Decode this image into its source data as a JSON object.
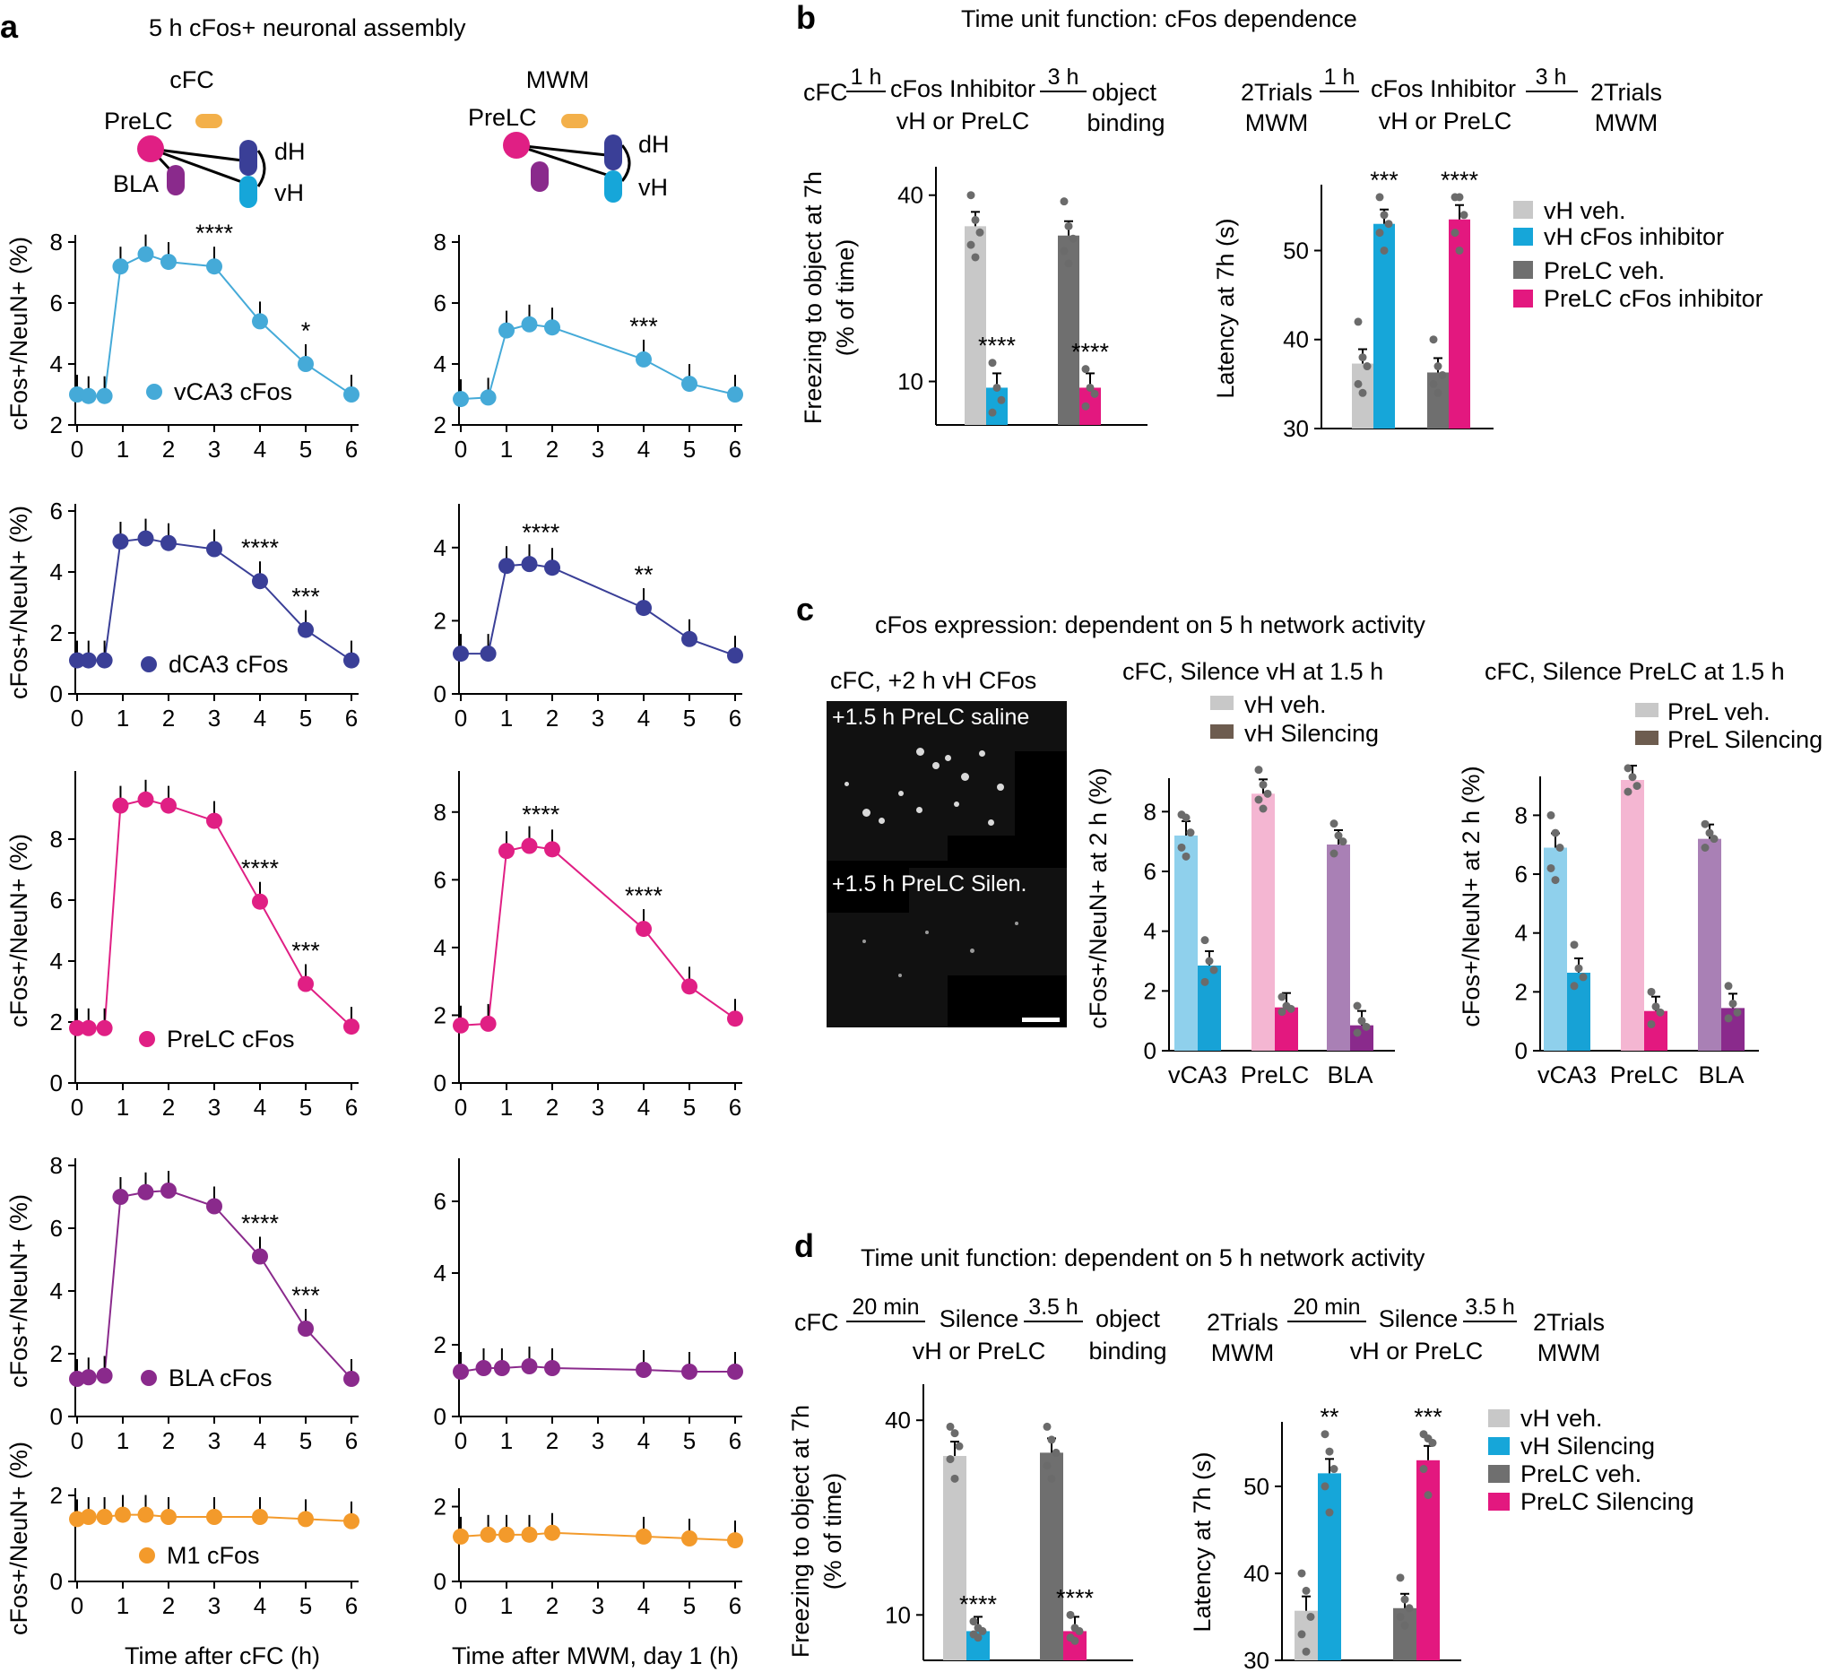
{
  "panels": {
    "a": {
      "letter": "a",
      "title": "5 h cFos+ neuronal assembly",
      "col_titles": [
        "cFC",
        "MWM"
      ],
      "schematic_labels": {
        "prelc": "PreLC",
        "bla": "BLA",
        "dh": "dH",
        "vh": "vH"
      },
      "x_ticks": [
        "0",
        "1",
        "2",
        "3",
        "4",
        "5",
        "6"
      ],
      "ylabel": "cFos+/NeuN+ (%)",
      "xlabel_cfc": "Time after cFC (h)",
      "xlabel_mwm": "Time after MWM, day 1 (h)"
    },
    "b": {
      "letter": "b",
      "title": "Time unit function: cFos dependence",
      "timeline_left": {
        "start": "cFC",
        "t1": "1 h",
        "mid_top": "cFos Inhibitor",
        "mid_bottom": "vH or PreLC",
        "t2": "3 h",
        "end_top": "object",
        "end_bottom": "binding"
      },
      "timeline_right": {
        "start_top": "2Trials",
        "start_bottom": "MWM",
        "t1": "1 h",
        "mid_top": "cFos Inhibitor",
        "mid_bottom": "vH or PreLC",
        "t2": "3 h",
        "end_top": "2Trials",
        "end_bottom": "MWM"
      },
      "legend": [
        "vH veh.",
        "vH cFos inhibitor",
        "PreLC veh.",
        "PreLC cFos inhibitor"
      ]
    },
    "c": {
      "letter": "c",
      "title": "cFos expression: dependent on 5 h network activity",
      "micrograph_title": "cFC, +2 h vH CFos",
      "micrograph_top_label": "+1.5 h PreLC saline",
      "micrograph_bottom_label": "+1.5 h PreLC Silen.",
      "chart_left_title": "cFC, Silence vH at 1.5 h",
      "chart_right_title": "cFC, Silence PreLC at 1.5 h",
      "legend_left": [
        "vH veh.",
        "vH Silencing"
      ],
      "legend_right": [
        "PreL veh.",
        "PreL Silencing"
      ]
    },
    "d": {
      "letter": "d",
      "title": "Time unit function: dependent on 5 h network activity",
      "timeline_left": {
        "start": "cFC",
        "t1": "20 min",
        "mid_top": "Silence",
        "mid_bottom": "vH or PreLC",
        "t2": "3.5 h",
        "end_top": "object",
        "end_bottom": "binding"
      },
      "timeline_right": {
        "start_top": "2Trials",
        "start_bottom": "MWM",
        "t1": "20 min",
        "mid_top": "Silence",
        "mid_bottom": "vH or PreLC",
        "t2": "3.5 h",
        "end_top": "2Trials",
        "end_bottom": "MWM"
      },
      "legend": [
        "vH veh.",
        "vH Silencing",
        "PreLC veh.",
        "PreLC Silencing"
      ]
    }
  },
  "colors": {
    "vCA3": "#45aad8",
    "dCA3": "#3a3f97",
    "PreLC": "#e01f84",
    "BLA": "#8a2a8c",
    "M1": "#f39a2b",
    "veh_light": "#c8c8c8",
    "veh_dark": "#6f6f6f",
    "vH_inhib": "#16a6d9",
    "prelc_inhib": "#e3187f",
    "c_vCA3_veh": "#8fd0ec",
    "c_vCA3_sil": "#17a2d6",
    "c_PreLC_veh": "#f4b6d2",
    "c_PreLC_sil": "#e3187f",
    "c_BLA_veh": "#a980b5",
    "c_BLA_sil": "#8a2a8c",
    "c_legend_sil": "#6d5c4f"
  },
  "chart_data": [
    {
      "id": "a-vca3-cfc",
      "type": "line",
      "series": [
        {
          "name": "vCA3 cFos",
          "x": [
            0,
            0.25,
            0.6,
            0.95,
            1.5,
            2,
            3,
            4,
            5,
            6
          ],
          "y": [
            3.0,
            2.95,
            2.95,
            7.2,
            7.6,
            7.35,
            7.2,
            5.4,
            4.0,
            3.0
          ]
        }
      ],
      "ylim": [
        2,
        8
      ],
      "yticks": [
        2,
        4,
        6,
        8
      ],
      "xlim": [
        0,
        6
      ],
      "annotations": [
        {
          "x": 3,
          "text": "****"
        },
        {
          "x": 5,
          "text": "*"
        }
      ]
    },
    {
      "id": "a-vca3-mwm",
      "type": "line",
      "series": [
        {
          "x": [
            0,
            0.6,
            1,
            1.5,
            2,
            4,
            5,
            6
          ],
          "y": [
            2.85,
            2.9,
            5.1,
            5.3,
            5.2,
            4.15,
            3.35,
            3.0
          ]
        }
      ],
      "ylim": [
        2,
        8
      ],
      "yticks": [
        2,
        4,
        6,
        8
      ],
      "xlim": [
        0,
        6
      ],
      "annotations": [
        {
          "x": 4,
          "text": "***"
        }
      ]
    },
    {
      "id": "a-dca3-cfc",
      "type": "line",
      "series": [
        {
          "name": "dCA3 cFos",
          "x": [
            0,
            0.25,
            0.6,
            0.95,
            1.5,
            2,
            3,
            4,
            5,
            6
          ],
          "y": [
            1.1,
            1.1,
            1.1,
            5.0,
            5.1,
            4.95,
            4.75,
            3.7,
            2.1,
            1.1
          ]
        }
      ],
      "ylim": [
        0,
        6
      ],
      "yticks": [
        0,
        2,
        4,
        6
      ],
      "xlim": [
        0,
        6
      ],
      "annotations": [
        {
          "x": 4,
          "text": "****"
        },
        {
          "x": 5,
          "text": "***"
        }
      ]
    },
    {
      "id": "a-dca3-mwm",
      "type": "line",
      "series": [
        {
          "x": [
            0,
            0.6,
            1,
            1.5,
            2,
            4,
            5,
            6
          ],
          "y": [
            1.1,
            1.1,
            3.5,
            3.55,
            3.45,
            2.35,
            1.5,
            1.05
          ]
        }
      ],
      "ylim": [
        0,
        5
      ],
      "yticks": [
        0,
        2,
        4
      ],
      "xlim": [
        0,
        6
      ],
      "annotations": [
        {
          "x": 1.75,
          "text": "****"
        },
        {
          "x": 4,
          "text": "**"
        }
      ]
    },
    {
      "id": "a-prelc-cfc",
      "type": "line",
      "series": [
        {
          "name": "PreLC cFos",
          "x": [
            0,
            0.25,
            0.6,
            0.95,
            1.5,
            2,
            3,
            4,
            5,
            6
          ],
          "y": [
            1.8,
            1.8,
            1.8,
            9.1,
            9.3,
            9.1,
            8.6,
            5.95,
            3.25,
            1.85
          ]
        }
      ],
      "ylim": [
        0,
        10
      ],
      "yticks": [
        0,
        2,
        4,
        6,
        8
      ],
      "xlim": [
        0,
        6
      ],
      "annotations": [
        {
          "x": 4,
          "text": "****"
        },
        {
          "x": 5,
          "text": "***"
        }
      ]
    },
    {
      "id": "a-prelc-mwm",
      "type": "line",
      "series": [
        {
          "x": [
            0,
            0.6,
            1,
            1.5,
            2,
            4,
            5,
            6
          ],
          "y": [
            1.7,
            1.75,
            6.85,
            7.0,
            6.9,
            4.55,
            2.85,
            1.9
          ]
        }
      ],
      "ylim": [
        0,
        9
      ],
      "yticks": [
        0,
        2,
        4,
        6,
        8
      ],
      "xlim": [
        0,
        6
      ],
      "annotations": [
        {
          "x": 1.75,
          "text": "****"
        },
        {
          "x": 4,
          "text": "****"
        }
      ]
    },
    {
      "id": "a-bla-cfc",
      "type": "line",
      "series": [
        {
          "name": "BLA cFos",
          "x": [
            0,
            0.25,
            0.6,
            0.95,
            1.5,
            2,
            3,
            4,
            5,
            6
          ],
          "y": [
            1.2,
            1.25,
            1.3,
            7.0,
            7.15,
            7.2,
            6.7,
            5.1,
            2.8,
            1.2
          ]
        }
      ],
      "ylim": [
        0,
        8
      ],
      "yticks": [
        0,
        2,
        4,
        6,
        8
      ],
      "xlim": [
        0,
        6
      ],
      "annotations": [
        {
          "x": 4,
          "text": "****"
        },
        {
          "x": 5,
          "text": "***"
        }
      ]
    },
    {
      "id": "a-bla-mwm",
      "type": "line",
      "series": [
        {
          "x": [
            0,
            0.5,
            0.9,
            1.5,
            2,
            4,
            5,
            6
          ],
          "y": [
            1.25,
            1.35,
            1.35,
            1.4,
            1.35,
            1.3,
            1.25,
            1.25
          ]
        }
      ],
      "ylim": [
        0,
        7
      ],
      "yticks": [
        0,
        2,
        4,
        6
      ],
      "xlim": [
        0,
        6
      ],
      "annotations": []
    },
    {
      "id": "a-m1-cfc",
      "type": "line",
      "series": [
        {
          "name": "M1 cFos",
          "x": [
            0,
            0.25,
            0.6,
            1,
            1.5,
            2,
            3,
            4,
            5,
            6
          ],
          "y": [
            1.45,
            1.5,
            1.5,
            1.55,
            1.55,
            1.5,
            1.5,
            1.5,
            1.45,
            1.4
          ]
        }
      ],
      "ylim": [
        0,
        2
      ],
      "yticks": [
        0,
        2
      ],
      "xlim": [
        0,
        6
      ],
      "annotations": []
    },
    {
      "id": "a-m1-mwm",
      "type": "line",
      "series": [
        {
          "x": [
            0,
            0.6,
            1,
            1.5,
            2,
            4,
            5,
            6
          ],
          "y": [
            1.2,
            1.25,
            1.25,
            1.25,
            1.3,
            1.2,
            1.15,
            1.1
          ]
        }
      ],
      "ylim": [
        0,
        2.3
      ],
      "yticks": [
        0,
        2
      ],
      "xlim": [
        0,
        6
      ],
      "annotations": []
    },
    {
      "id": "b-freezing",
      "type": "bar",
      "ylabel": "Freezing to object at 7h (% of time)",
      "ylim": [
        3,
        44
      ],
      "yticks": [
        10,
        40
      ],
      "tickvals": [
        10,
        40
      ],
      "bars": [
        {
          "value": 35,
          "color": "veh_light",
          "points": [
            40,
            36,
            34,
            32,
            30
          ]
        },
        {
          "value": 9,
          "color": "vH_inhib",
          "sig": "****",
          "points": [
            13,
            9,
            7,
            5
          ]
        },
        {
          "value": 33.5,
          "color": "veh_dark",
          "points": [
            39,
            35,
            33,
            31,
            29
          ]
        },
        {
          "value": 9,
          "color": "prelc_inhib",
          "sig": "****",
          "points": [
            12,
            9,
            8,
            6
          ]
        }
      ]
    },
    {
      "id": "b-latency",
      "type": "bar",
      "ylabel": "Latency at 7h (s)",
      "ylim": [
        30,
        57
      ],
      "yticks": [
        30,
        40,
        50
      ],
      "tickvals": [
        30,
        40,
        50
      ],
      "bars": [
        {
          "value": 37.3,
          "color": "veh_light",
          "points": [
            42,
            38,
            37,
            35,
            34
          ]
        },
        {
          "value": 53,
          "color": "vH_inhib",
          "sig": "***",
          "points": [
            56,
            54,
            53,
            52,
            50
          ]
        },
        {
          "value": 36.3,
          "color": "veh_dark",
          "points": [
            40,
            37,
            36,
            35,
            34
          ]
        },
        {
          "value": 53.5,
          "color": "prelc_inhib",
          "sig": "****",
          "points": [
            56,
            56,
            54,
            52,
            50
          ]
        }
      ]
    },
    {
      "id": "c-silence-vh",
      "type": "bar",
      "ylabel": "cFos+/NeuN+ at 2 h (%)",
      "ylim": [
        0,
        9
      ],
      "yticks": [
        0,
        2,
        4,
        6,
        8
      ],
      "tickvals": [
        0,
        2,
        4,
        6,
        8
      ],
      "categories": [
        "vCA3",
        "PreLC",
        "BLA"
      ],
      "bars": [
        {
          "value": 7.2,
          "color": "c_vCA3_veh",
          "points": [
            7.9,
            7.8,
            7.3,
            6.8,
            6.5
          ]
        },
        {
          "value": 2.85,
          "color": "c_vCA3_sil",
          "points": [
            3.7,
            3.0,
            2.7,
            2.3
          ]
        },
        {
          "value": 8.6,
          "color": "c_PreLC_veh",
          "points": [
            9.4,
            8.9,
            8.6,
            8.4,
            8.1
          ]
        },
        {
          "value": 1.45,
          "color": "c_PreLC_sil",
          "points": [
            1.8,
            1.5,
            1.4,
            1.3
          ]
        },
        {
          "value": 6.9,
          "color": "c_BLA_veh",
          "points": [
            7.6,
            7.2,
            7.0,
            6.6
          ]
        },
        {
          "value": 0.85,
          "color": "c_BLA_sil",
          "points": [
            1.5,
            1.0,
            0.8,
            0.6
          ]
        }
      ]
    },
    {
      "id": "c-silence-prelc",
      "type": "bar",
      "ylabel": "cFos+/NeuN+ at 2 h (%)",
      "ylim": [
        0,
        9.2
      ],
      "yticks": [
        0,
        2,
        4,
        6,
        8
      ],
      "tickvals": [
        0,
        2,
        4,
        6,
        8
      ],
      "categories": [
        "vCA3",
        "PreLC",
        "BLA"
      ],
      "bars": [
        {
          "value": 6.9,
          "color": "c_vCA3_veh",
          "points": [
            8.0,
            7.4,
            6.9,
            6.2,
            5.8
          ]
        },
        {
          "value": 2.65,
          "color": "c_vCA3_sil",
          "points": [
            3.6,
            2.8,
            2.5,
            2.2
          ]
        },
        {
          "value": 9.2,
          "color": "c_PreLC_veh",
          "points": [
            9.6,
            9.3,
            9.0,
            8.8
          ]
        },
        {
          "value": 1.35,
          "color": "c_PreLC_sil",
          "points": [
            2.0,
            1.5,
            1.3,
            0.9
          ]
        },
        {
          "value": 7.2,
          "color": "c_BLA_veh",
          "points": [
            7.7,
            7.4,
            7.2,
            6.9
          ]
        },
        {
          "value": 1.45,
          "color": "c_BLA_sil",
          "points": [
            2.2,
            1.6,
            1.3,
            1.1
          ]
        }
      ]
    },
    {
      "id": "d-freezing",
      "type": "bar",
      "ylabel": "Freezing to object at 7h (% of time)",
      "ylim": [
        3,
        45
      ],
      "yticks": [
        10,
        40
      ],
      "tickvals": [
        10,
        40
      ],
      "bars": [
        {
          "value": 34.5,
          "color": "veh_light",
          "points": [
            39,
            38,
            36,
            34,
            31
          ]
        },
        {
          "value": 7.5,
          "color": "vH_inhib",
          "sig": "****",
          "points": [
            9,
            8,
            7.5,
            7,
            6.5
          ]
        },
        {
          "value": 35,
          "color": "veh_dark",
          "points": [
            39,
            37,
            35,
            33,
            31
          ]
        },
        {
          "value": 7.5,
          "color": "prelc_inhib",
          "sig": "****",
          "points": [
            10,
            8,
            7.5,
            6.5,
            6
          ]
        }
      ]
    },
    {
      "id": "d-latency",
      "type": "bar",
      "ylabel": "Latency at 7h (s)",
      "ylim": [
        30,
        57
      ],
      "yticks": [
        30,
        40,
        50
      ],
      "tickvals": [
        30,
        40,
        50
      ],
      "bars": [
        {
          "value": 35.7,
          "color": "veh_light",
          "points": [
            40,
            38,
            35,
            33,
            31
          ]
        },
        {
          "value": 51.5,
          "color": "vH_inhib",
          "sig": "**",
          "points": [
            56,
            54,
            52,
            50,
            47
          ]
        },
        {
          "value": 36,
          "color": "veh_dark",
          "points": [
            39.5,
            37,
            36,
            35,
            34
          ]
        },
        {
          "value": 53,
          "color": "prelc_inhib",
          "sig": "***",
          "points": [
            56,
            55.5,
            55,
            52,
            49
          ]
        }
      ]
    }
  ]
}
